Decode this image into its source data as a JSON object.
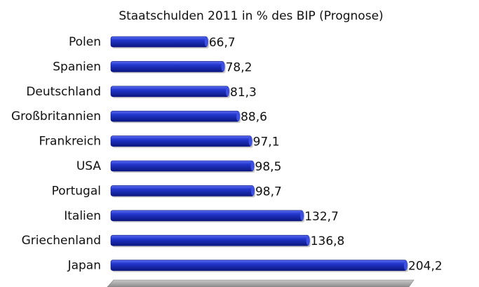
{
  "chart_data": {
    "type": "bar",
    "orientation": "horizontal",
    "title": "Staatschulden 2011 in % des BIP (Prognose)",
    "categories": [
      "Polen",
      "Spanien",
      "Deutschland",
      "Großbritannien",
      "Frankreich",
      "USA",
      "Portugal",
      "Italien",
      "Griechenland",
      "Japan"
    ],
    "values": [
      66.7,
      78.2,
      81.3,
      88.6,
      97.1,
      98.5,
      98.7,
      132.7,
      136.8,
      204.2
    ],
    "value_labels": [
      "66,7",
      "78,2",
      "81,3",
      "88,6",
      "97,1",
      "98,5",
      "98,7",
      "132,7",
      "136,8",
      "204,2"
    ],
    "xlabel": "",
    "ylabel": "",
    "xlim": [
      0,
      204.2
    ],
    "grid": false,
    "legend": "none",
    "bar_color": "#1a2ebf",
    "floor_color": "#a8a8a8"
  }
}
